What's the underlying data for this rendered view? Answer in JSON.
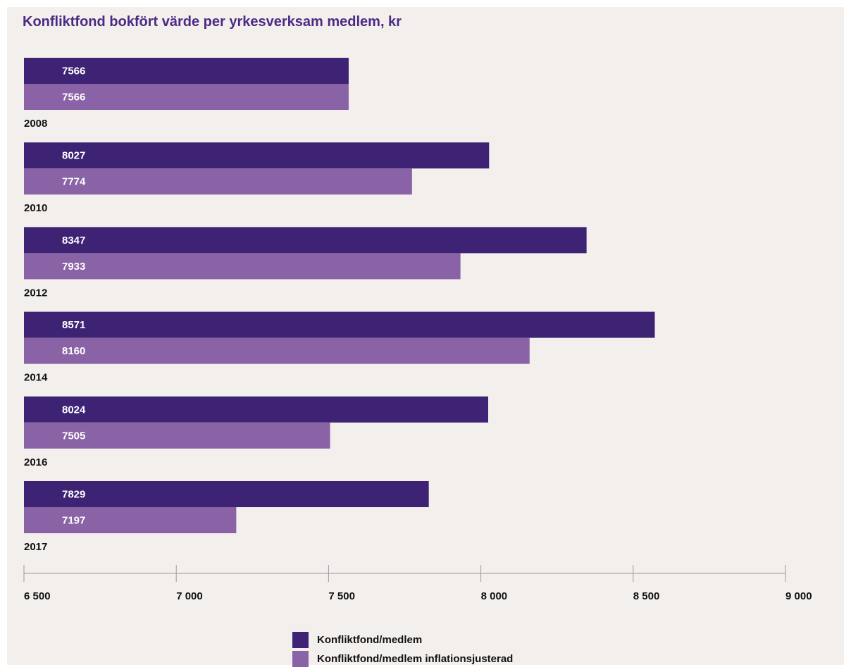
{
  "chart_data": {
    "type": "bar",
    "orientation": "horizontal",
    "title": "Konfliktfond bokfört värde per yrkesverksam medlem, kr",
    "categories": [
      "2008",
      "2010",
      "2012",
      "2014",
      "2016",
      "2017"
    ],
    "series": [
      {
        "name": "Konfliktfond/medlem",
        "color": "#3e2375",
        "values": [
          7566,
          8027,
          8347,
          8571,
          8024,
          7829
        ]
      },
      {
        "name": "Konfliktfond/medlem inflationsjusterad",
        "color": "#8a63a6",
        "values": [
          7566,
          7774,
          7933,
          8160,
          7505,
          7197
        ]
      }
    ],
    "x_ticks": [
      6500,
      7000,
      7500,
      8000,
      8500,
      9000
    ],
    "x_tick_labels": [
      "6 500",
      "7 000",
      "7 500",
      "8 000",
      "8 500",
      "9 000"
    ],
    "xlim": [
      6500,
      9000
    ],
    "grid": false,
    "legend_position": "bottom-center"
  }
}
